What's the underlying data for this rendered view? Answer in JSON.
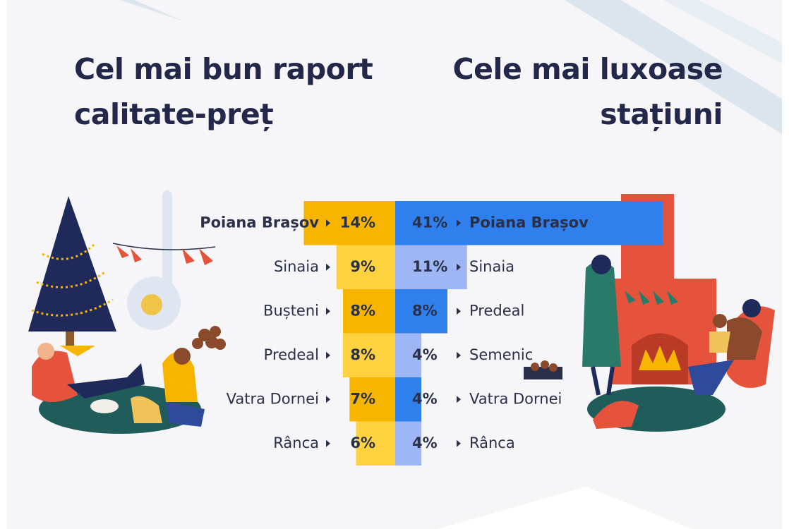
{
  "chart_data": [
    {
      "type": "bar",
      "title": "Cel mai bun raport calitate-preț",
      "bar_direction": "left",
      "categories": [
        "Poiana Brașov",
        "Sinaia",
        "Bușteni",
        "Predeal",
        "Vatra Dornei",
        "Rânca"
      ],
      "values": [
        14,
        9,
        8,
        8,
        7,
        6
      ],
      "value_labels": [
        "14%",
        "9%",
        "8%",
        "8%",
        "7%",
        "6%"
      ],
      "colors": [
        "#f7b500",
        "#ffd23f",
        "#f7b500",
        "#ffd23f",
        "#f7b500",
        "#ffd23f"
      ]
    },
    {
      "type": "bar",
      "title": "Cele mai luxoase stațiuni",
      "bar_direction": "right",
      "categories": [
        "Poiana Brașov",
        "Sinaia",
        "Predeal",
        "Semenic",
        "Vatra Dornei",
        "Rânca"
      ],
      "values": [
        41,
        11,
        8,
        4,
        4,
        4
      ],
      "value_labels": [
        "41%",
        "11%",
        "8%",
        "4%",
        "4%",
        "4%"
      ],
      "colors": [
        "#2f80ed",
        "#9fb6f4",
        "#2f80ed",
        "#9fb6f4",
        "#2f80ed",
        "#9fb6f4"
      ]
    }
  ]
}
